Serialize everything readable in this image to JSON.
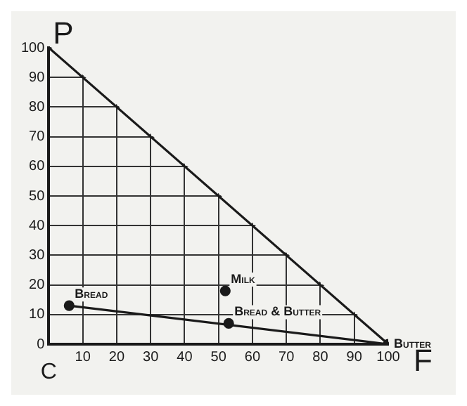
{
  "chart_data": {
    "type": "scatter",
    "xlabel": "F",
    "ylabel": "P",
    "annotations": [
      "C"
    ],
    "xlim": [
      0,
      100
    ],
    "ylim": [
      0,
      100
    ],
    "xticks": [
      {
        "value": 0,
        "label": null
      },
      10,
      20,
      30,
      40,
      50,
      60,
      70,
      80,
      90,
      100
    ],
    "yticks": [
      0,
      10,
      20,
      30,
      40,
      50,
      60,
      70,
      80,
      90,
      100
    ],
    "grid": true,
    "legend": false,
    "marker": "circle",
    "series": [
      {
        "type": "line",
        "color": "#1a1a1a",
        "x": [
          0,
          100
        ],
        "values": [
          100,
          0
        ],
        "marker": "none"
      },
      {
        "type": "line",
        "color": "#1a1a1a",
        "x": [
          6,
          100
        ],
        "values": [
          13,
          0
        ],
        "marker": "none"
      },
      {
        "name": "Bread",
        "color": "#1a1a1a",
        "x": [
          6
        ],
        "values": [
          13
        ]
      },
      {
        "name": "Milk",
        "color": "#1a1a1a",
        "x": [
          52
        ],
        "values": [
          18
        ]
      },
      {
        "name": "Bread & Butter",
        "color": "#1a1a1a",
        "x": [
          53
        ],
        "values": [
          7
        ]
      },
      {
        "name": "Butter",
        "color": "#1a1a1a",
        "x": [
          100
        ],
        "values": [
          0
        ]
      }
    ]
  }
}
